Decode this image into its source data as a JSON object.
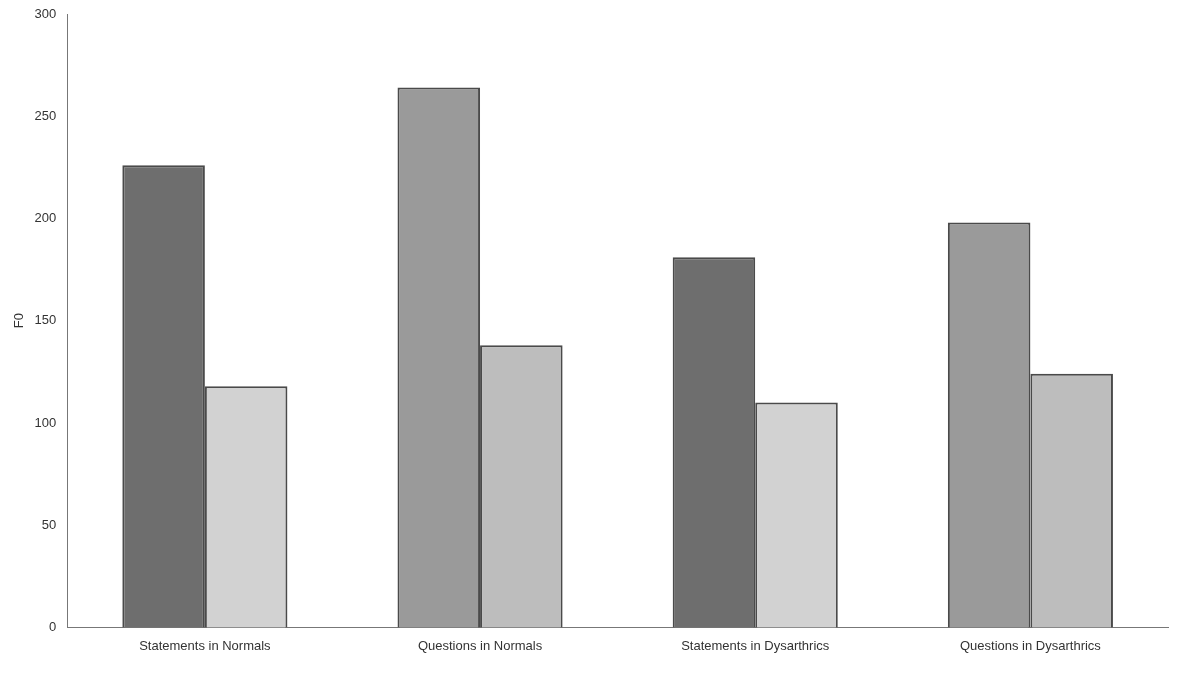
{
  "chart_data": {
    "type": "bar",
    "ylabel": "F0",
    "categories": [
      "Statements in Normals",
      "Questions in Normals",
      "Statements in Dysarthrics",
      "Questions in Dysarthrics"
    ],
    "series": [
      {
        "colors": [
          "#6e6e6e",
          "#9a9a9a",
          "#6e6e6e",
          "#9a9a9a"
        ],
        "values": [
          226,
          264,
          181,
          198
        ]
      },
      {
        "colors": [
          "#d2d2d2",
          "#bdbdbd",
          "#d2d2d2",
          "#bdbdbd"
        ],
        "values": [
          118,
          138,
          110,
          124
        ]
      }
    ],
    "ylim": [
      0,
      300
    ],
    "yticks": [
      0,
      50,
      100,
      150,
      200,
      250,
      300
    ],
    "grid": false,
    "legend": false
  }
}
